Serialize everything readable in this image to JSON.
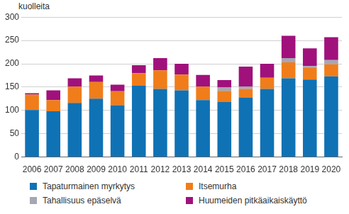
{
  "chart_data": {
    "type": "bar",
    "stacked": true,
    "y_label": "kuolleita",
    "categories": [
      "2006",
      "2007",
      "2008",
      "2009",
      "2010",
      "2011",
      "2012",
      "2013",
      "2014",
      "2015",
      "2016",
      "2017",
      "2018",
      "2019",
      "2020"
    ],
    "series": [
      {
        "name": "Tapaturmainen myrkytys",
        "color": "#0f72b5",
        "values": [
          101,
          98,
          116,
          125,
          111,
          153,
          146,
          143,
          122,
          118,
          128,
          146,
          169,
          166,
          173
        ]
      },
      {
        "name": "Itsemurha",
        "color": "#f07d1a",
        "values": [
          33,
          24,
          35,
          36,
          30,
          27,
          40,
          34,
          29,
          24,
          18,
          24,
          34,
          25,
          26
        ]
      },
      {
        "name": "Tahallisuus epäselvä",
        "color": "#a7a7b3",
        "values": [
          0,
          0,
          0,
          0,
          0,
          0,
          0,
          0,
          0,
          7,
          5,
          0,
          9,
          4,
          9
        ]
      },
      {
        "name": "Huumeiden pitkäaikaiskäyttö",
        "color": "#a0117c",
        "values": [
          3,
          21,
          18,
          14,
          14,
          17,
          26,
          23,
          25,
          16,
          43,
          30,
          48,
          38,
          49
        ]
      }
    ],
    "ylim": [
      0,
      300
    ],
    "yticks": [
      0,
      50,
      100,
      150,
      200,
      250,
      300
    ],
    "grid": true,
    "legend": "bottom"
  }
}
